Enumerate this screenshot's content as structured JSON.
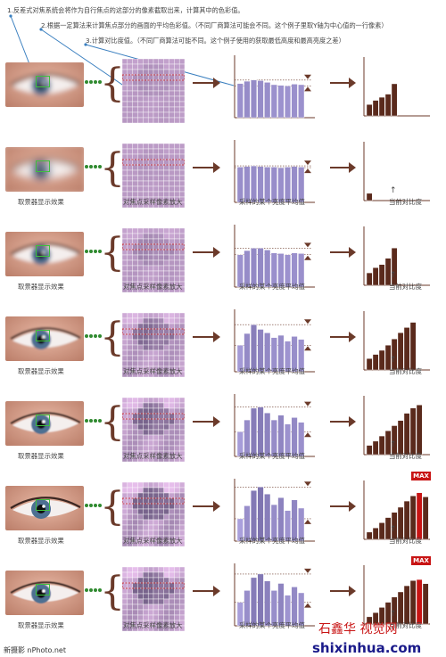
{
  "notes": [
    "1.反差式对焦系统会将作为自行焦点的这部分的像素截取出来，计算其中的色彩值。",
    "2.根据一定算法来计算焦点部分的画面的平均色彩值。（不同厂商算法可能会不同。这个例子里取Y轴为中心值的一行像素）",
    "3.计算对比度值。（不同厂商算法可能不同。这个例子使用的获取最低高度和最高亮度之差）"
  ],
  "captions": {
    "viewfinder": "取景器显示效果",
    "sample": "对焦点采样像素放大",
    "average": "采样的某个亮度平均值",
    "contrast": "当前对比度"
  },
  "max_label": "MAX",
  "footer": {
    "left": "新摄影 nPhoto.net",
    "right": "shixinhua.com",
    "mark": "石鑫华 视觉网"
  },
  "colors": {
    "brown": "#6b3a2a",
    "green": "#3fbf3f",
    "red": "#c81414"
  },
  "rows": [
    {
      "blur": 3.0,
      "gridContrast": 0.08,
      "avg": [
        0.58,
        0.62,
        0.64,
        0.63,
        0.6,
        0.56,
        0.55,
        0.54,
        0.57,
        0.56
      ],
      "contrast": [
        0.22,
        0.3,
        0.36,
        0.42,
        0.62
      ],
      "captions": false,
      "max": false
    },
    {
      "blur": 4.5,
      "gridContrast": 0.04,
      "avg": [
        0.6,
        0.61,
        0.62,
        0.61,
        0.6,
        0.6,
        0.59,
        0.6,
        0.61,
        0.6
      ],
      "contrast": [
        0.14
      ],
      "captions": true,
      "max": false
    },
    {
      "blur": 2.2,
      "gridContrast": 0.14,
      "avg": [
        0.55,
        0.62,
        0.66,
        0.66,
        0.63,
        0.58,
        0.57,
        0.55,
        0.58,
        0.57
      ],
      "contrast": [
        0.24,
        0.34,
        0.4,
        0.52,
        0.72
      ],
      "captions": true,
      "max": false
    },
    {
      "blur": 1.0,
      "gridContrast": 0.3,
      "avg": [
        0.45,
        0.65,
        0.8,
        0.72,
        0.66,
        0.58,
        0.62,
        0.52,
        0.6,
        0.55
      ],
      "contrast": [
        0.22,
        0.3,
        0.38,
        0.48,
        0.6,
        0.72,
        0.82,
        0.92
      ],
      "captions": true,
      "max": false
    },
    {
      "blur": 0.7,
      "gridContrast": 0.36,
      "avg": [
        0.42,
        0.62,
        0.82,
        0.84,
        0.74,
        0.62,
        0.7,
        0.55,
        0.66,
        0.58
      ],
      "contrast": [
        0.18,
        0.26,
        0.36,
        0.46,
        0.56,
        0.66,
        0.8,
        0.9,
        0.96
      ],
      "captions": true,
      "max": false
    },
    {
      "blur": 0.2,
      "gridContrast": 0.48,
      "avg": [
        0.38,
        0.6,
        0.86,
        0.92,
        0.8,
        0.62,
        0.74,
        0.52,
        0.7,
        0.56
      ],
      "contrast": [
        0.14,
        0.22,
        0.32,
        0.42,
        0.52,
        0.62,
        0.74,
        0.84,
        0.9,
        0.82
      ],
      "captions": true,
      "max": true,
      "maxIndex": 8
    },
    {
      "blur": 0.5,
      "gridContrast": 0.4,
      "avg": [
        0.4,
        0.6,
        0.82,
        0.88,
        0.76,
        0.6,
        0.72,
        0.52,
        0.66,
        0.56
      ],
      "contrast": [
        0.14,
        0.22,
        0.32,
        0.42,
        0.52,
        0.62,
        0.74,
        0.84,
        0.86,
        0.78
      ],
      "captions": true,
      "max": true,
      "maxIndex": 8
    }
  ]
}
